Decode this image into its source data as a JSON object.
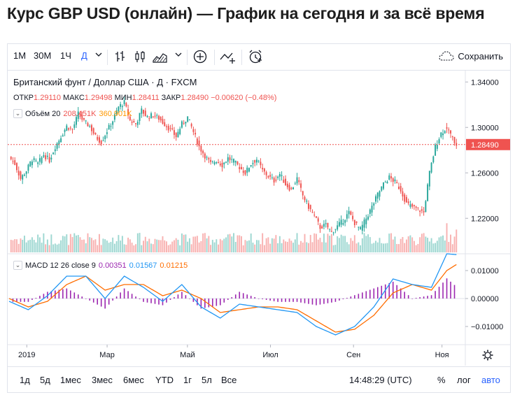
{
  "page": {
    "title": "Курс GBP USD (онлайн) — График на сегодня и за всё время"
  },
  "toolbar": {
    "intervals": [
      "1М",
      "30М",
      "1Ч",
      "Д"
    ],
    "active_interval": "Д",
    "icons": [
      "chevron-down-icon",
      "bars-icon",
      "candles-icon",
      "area-icon",
      "chevron-down-icon",
      "plus-circle-icon",
      "compare-icon",
      "alarm-icon"
    ],
    "save_label": "Сохранить"
  },
  "legend": {
    "symbol": "Британский фунт / Доллар США · Д · FXCM",
    "open_label": "ОТКР",
    "open": "1.29110",
    "high_label": "МАКС",
    "high": "1.29498",
    "low_label": "МИН",
    "low": "1.28411",
    "close_label": "ЗАКР",
    "close": "1.28490",
    "change": "−0.00620 (−0.48%)",
    "volume_label": "Объём 20",
    "volume_value": "208.451K",
    "volume_ma": "360.901K",
    "macd_label": "MACD 12 26 close 9",
    "macd_hist": "0.00351",
    "macd_line": "0.01567",
    "macd_signal": "0.01215"
  },
  "price_axis": {
    "ticks": [
      "1.34000",
      "1.30000",
      "1.26000",
      "1.22000"
    ],
    "last_price": "1.28490"
  },
  "macd_axis": {
    "ticks": [
      "0.01000",
      "0.00000",
      "−0.01000"
    ]
  },
  "time_axis": {
    "ticks": [
      "2019",
      "Мар",
      "Май",
      "Июл",
      "Сен",
      "Ноя"
    ]
  },
  "bottombar": {
    "ranges": [
      "1д",
      "5д",
      "1мес",
      "3мес",
      "6мес",
      "YTD",
      "1г",
      "5л",
      "Все"
    ],
    "time": "14:48:29 (UTC)",
    "percent": "%",
    "log": "лог",
    "auto": "авто"
  },
  "colors": {
    "up": "#26a69a",
    "down": "#ef5350",
    "macd": "#2196f3",
    "signal": "#ff6d00",
    "hist": "#9c27b0"
  },
  "chart_data": {
    "type": "candlestick",
    "series_name": "Британский фунт / Доллар США",
    "interval": "Д",
    "x_ticks": [
      "2019",
      "Мар",
      "Май",
      "Июл",
      "Сен",
      "Ноя"
    ],
    "x_tick_fractions_note": "time axis spans mid-Dec 2018 to early Nov 2019",
    "ylim": [
      1.19,
      1.35
    ],
    "y_ticks": [
      1.34,
      1.3,
      1.26,
      1.22
    ],
    "last_close": 1.2849,
    "close_path": [
      [
        0,
        1.274
      ],
      [
        3,
        1.268
      ],
      [
        6,
        1.255
      ],
      [
        9,
        1.262
      ],
      [
        12,
        1.272
      ],
      [
        15,
        1.268
      ],
      [
        18,
        1.276
      ],
      [
        21,
        1.271
      ],
      [
        24,
        1.283
      ],
      [
        27,
        1.292
      ],
      [
        30,
        1.301
      ],
      [
        33,
        1.298
      ],
      [
        36,
        1.312
      ],
      [
        39,
        1.305
      ],
      [
        42,
        1.301
      ],
      [
        45,
        1.292
      ],
      [
        48,
        1.287
      ],
      [
        51,
        1.297
      ],
      [
        54,
        1.306
      ],
      [
        57,
        1.318
      ],
      [
        60,
        1.322
      ],
      [
        63,
        1.306
      ],
      [
        66,
        1.303
      ],
      [
        69,
        1.315
      ],
      [
        72,
        1.309
      ],
      [
        75,
        1.311
      ],
      [
        78,
        1.308
      ],
      [
        81,
        1.303
      ],
      [
        84,
        1.298
      ],
      [
        87,
        1.292
      ],
      [
        90,
        1.303
      ],
      [
        93,
        1.309
      ],
      [
        96,
        1.296
      ],
      [
        99,
        1.283
      ],
      [
        102,
        1.275
      ],
      [
        105,
        1.268
      ],
      [
        108,
        1.271
      ],
      [
        111,
        1.267
      ],
      [
        114,
        1.273
      ],
      [
        117,
        1.27
      ],
      [
        120,
        1.265
      ],
      [
        123,
        1.26
      ],
      [
        126,
        1.268
      ],
      [
        129,
        1.272
      ],
      [
        132,
        1.262
      ],
      [
        135,
        1.257
      ],
      [
        138,
        1.253
      ],
      [
        141,
        1.259
      ],
      [
        144,
        1.25
      ],
      [
        147,
        1.245
      ],
      [
        150,
        1.255
      ],
      [
        153,
        1.24
      ],
      [
        156,
        1.23
      ],
      [
        159,
        1.222
      ],
      [
        162,
        1.212
      ],
      [
        165,
        1.214
      ],
      [
        168,
        1.208
      ],
      [
        171,
        1.213
      ],
      [
        174,
        1.218
      ],
      [
        177,
        1.225
      ],
      [
        180,
        1.216
      ],
      [
        183,
        1.21
      ],
      [
        186,
        1.22
      ],
      [
        189,
        1.23
      ],
      [
        192,
        1.241
      ],
      [
        195,
        1.25
      ],
      [
        198,
        1.256
      ],
      [
        201,
        1.252
      ],
      [
        204,
        1.245
      ],
      [
        207,
        1.233
      ],
      [
        210,
        1.23
      ],
      [
        213,
        1.228
      ],
      [
        216,
        1.225
      ],
      [
        219,
        1.26
      ],
      [
        222,
        1.283
      ],
      [
        225,
        1.295
      ],
      [
        228,
        1.3
      ],
      [
        231,
        1.29
      ],
      [
        233,
        1.285
      ]
    ],
    "volume_note": "volume histogram under price, MA(20)",
    "macd": {
      "params": "12 26 close 9",
      "ylim": [
        -0.016,
        0.016
      ],
      "y_ticks": [
        0.01,
        0.0,
        -0.01
      ],
      "macd_line": [
        [
          0,
          -0.001
        ],
        [
          10,
          -0.004
        ],
        [
          20,
          0.001
        ],
        [
          30,
          0.008
        ],
        [
          40,
          0.008
        ],
        [
          50,
          0.0
        ],
        [
          60,
          0.008
        ],
        [
          70,
          0.004
        ],
        [
          80,
          -0.001
        ],
        [
          90,
          0.005
        ],
        [
          100,
          -0.003
        ],
        [
          110,
          -0.007
        ],
        [
          120,
          -0.002
        ],
        [
          130,
          -0.003
        ],
        [
          140,
          -0.004
        ],
        [
          150,
          -0.005
        ],
        [
          160,
          -0.01
        ],
        [
          170,
          -0.013
        ],
        [
          180,
          -0.01
        ],
        [
          190,
          -0.003
        ],
        [
          200,
          0.007
        ],
        [
          210,
          0.005
        ],
        [
          220,
          0.004
        ],
        [
          228,
          0.016
        ],
        [
          233,
          0.0157
        ]
      ],
      "signal_line": [
        [
          0,
          0.0
        ],
        [
          10,
          -0.003
        ],
        [
          20,
          -0.001
        ],
        [
          30,
          0.005
        ],
        [
          40,
          0.008
        ],
        [
          50,
          0.003
        ],
        [
          60,
          0.005
        ],
        [
          70,
          0.005
        ],
        [
          80,
          0.001
        ],
        [
          90,
          0.003
        ],
        [
          100,
          0.0
        ],
        [
          110,
          -0.005
        ],
        [
          120,
          -0.004
        ],
        [
          130,
          -0.003
        ],
        [
          140,
          -0.003
        ],
        [
          150,
          -0.004
        ],
        [
          160,
          -0.008
        ],
        [
          170,
          -0.012
        ],
        [
          180,
          -0.011
        ],
        [
          190,
          -0.006
        ],
        [
          200,
          0.002
        ],
        [
          210,
          0.005
        ],
        [
          220,
          0.003
        ],
        [
          228,
          0.01
        ],
        [
          233,
          0.01215
        ]
      ],
      "last_hist": 0.00351
    }
  }
}
